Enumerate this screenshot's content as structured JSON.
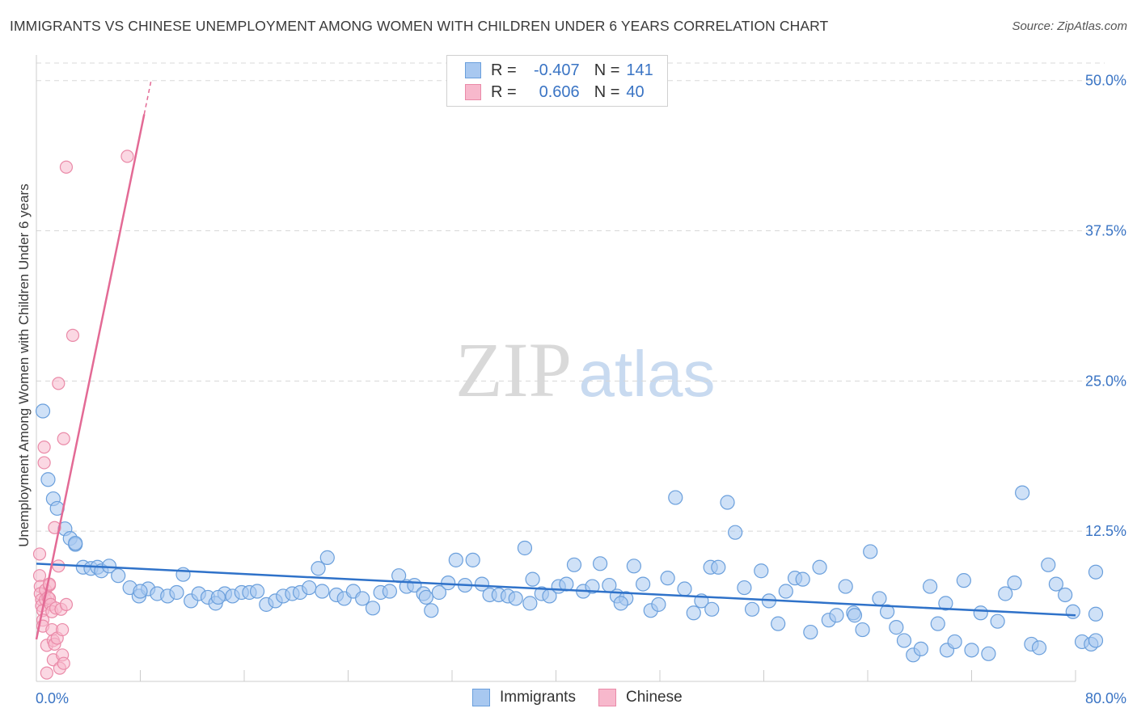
{
  "header": {
    "title": "IMMIGRANTS VS CHINESE UNEMPLOYMENT AMONG WOMEN WITH CHILDREN UNDER 6 YEARS CORRELATION CHART",
    "source": "Source: ZipAtlas.com"
  },
  "legend": {
    "r_label": "R =",
    "n_label": "N =",
    "immigrants": {
      "r": "-0.407",
      "n": "141"
    },
    "chinese": {
      "r": "0.606",
      "n": "40"
    }
  },
  "bottom_legend": {
    "immigrants": "Immigrants",
    "chinese": "Chinese"
  },
  "watermark": {
    "zip": "ZIP",
    "atlas": "atlas"
  },
  "colors": {
    "immigrants_fill": "#a8c8f0",
    "immigrants_stroke": "#6a9fdc",
    "immigrants_line": "#2f72c9",
    "chinese_fill": "#f7b8cc",
    "chinese_stroke": "#ea8aa8",
    "chinese_line": "#e36a95",
    "axis_text": "#3a74c4",
    "grid": "#d8d8d8"
  },
  "chart_data": {
    "type": "scatter",
    "title": "IMMIGRANTS VS CHINESE UNEMPLOYMENT AMONG WOMEN WITH CHILDREN UNDER 6 YEARS CORRELATION CHART",
    "xlabel": "",
    "ylabel": "Unemployment Among Women with Children Under 6 years",
    "xlim": [
      0,
      80
    ],
    "ylim": [
      0,
      52
    ],
    "x_tick_labels": [
      "0.0%",
      "80.0%"
    ],
    "y_ticks": [
      12.5,
      25.0,
      37.5,
      50.0
    ],
    "y_tick_labels": [
      "12.5%",
      "25.0%",
      "37.5%",
      "50.0%"
    ],
    "series": [
      {
        "name": "Immigrants",
        "trend": {
          "x": [
            0,
            80
          ],
          "y": [
            9.8,
            5.5
          ]
        },
        "points": [
          [
            0.5,
            22.5
          ],
          [
            0.9,
            16.8
          ],
          [
            1.3,
            15.2
          ],
          [
            1.6,
            14.4
          ],
          [
            2.2,
            12.7
          ],
          [
            2.6,
            11.9
          ],
          [
            3.0,
            11.4
          ],
          [
            3.6,
            9.5
          ],
          [
            4.2,
            9.4
          ],
          [
            4.7,
            9.5
          ],
          [
            5.0,
            9.2
          ],
          [
            5.6,
            9.6
          ],
          [
            6.3,
            8.8
          ],
          [
            7.2,
            7.8
          ],
          [
            7.9,
            7.1
          ],
          [
            8.6,
            7.7
          ],
          [
            9.3,
            7.3
          ],
          [
            10.1,
            7.1
          ],
          [
            10.8,
            7.4
          ],
          [
            11.3,
            8.9
          ],
          [
            11.9,
            6.7
          ],
          [
            12.5,
            7.3
          ],
          [
            13.2,
            7.0
          ],
          [
            13.8,
            6.5
          ],
          [
            14.5,
            7.3
          ],
          [
            15.1,
            7.1
          ],
          [
            15.8,
            7.4
          ],
          [
            16.4,
            7.4
          ],
          [
            17.0,
            7.5
          ],
          [
            17.7,
            6.4
          ],
          [
            18.4,
            6.7
          ],
          [
            19.0,
            7.1
          ],
          [
            19.7,
            7.3
          ],
          [
            20.3,
            7.4
          ],
          [
            21.0,
            7.8
          ],
          [
            21.7,
            9.4
          ],
          [
            22.4,
            10.3
          ],
          [
            23.1,
            7.2
          ],
          [
            23.7,
            6.9
          ],
          [
            24.4,
            7.5
          ],
          [
            25.1,
            6.9
          ],
          [
            25.9,
            6.1
          ],
          [
            26.5,
            7.4
          ],
          [
            27.2,
            7.5
          ],
          [
            27.9,
            8.8
          ],
          [
            28.5,
            7.9
          ],
          [
            29.1,
            8.0
          ],
          [
            29.8,
            7.3
          ],
          [
            30.4,
            5.9
          ],
          [
            31.0,
            7.4
          ],
          [
            31.7,
            8.2
          ],
          [
            32.3,
            10.1
          ],
          [
            33.0,
            8.0
          ],
          [
            33.6,
            10.1
          ],
          [
            34.3,
            8.1
          ],
          [
            34.9,
            7.2
          ],
          [
            35.6,
            7.2
          ],
          [
            36.3,
            7.1
          ],
          [
            36.9,
            6.9
          ],
          [
            37.6,
            11.1
          ],
          [
            38.2,
            8.5
          ],
          [
            38.9,
            7.3
          ],
          [
            39.5,
            7.1
          ],
          [
            40.2,
            7.9
          ],
          [
            40.8,
            8.1
          ],
          [
            41.4,
            9.7
          ],
          [
            42.1,
            7.5
          ],
          [
            42.8,
            7.9
          ],
          [
            43.4,
            9.8
          ],
          [
            44.1,
            8.0
          ],
          [
            44.7,
            7.1
          ],
          [
            45.4,
            6.9
          ],
          [
            46.0,
            9.6
          ],
          [
            46.7,
            8.1
          ],
          [
            47.3,
            5.9
          ],
          [
            47.9,
            6.4
          ],
          [
            48.6,
            8.6
          ],
          [
            49.2,
            15.3
          ],
          [
            49.9,
            7.7
          ],
          [
            50.6,
            5.7
          ],
          [
            51.2,
            6.7
          ],
          [
            51.9,
            9.5
          ],
          [
            52.5,
            9.5
          ],
          [
            53.2,
            14.9
          ],
          [
            53.8,
            12.4
          ],
          [
            54.5,
            7.8
          ],
          [
            55.1,
            6.0
          ],
          [
            55.8,
            9.2
          ],
          [
            56.4,
            6.7
          ],
          [
            57.1,
            4.8
          ],
          [
            57.7,
            7.5
          ],
          [
            58.4,
            8.6
          ],
          [
            59.0,
            8.5
          ],
          [
            59.6,
            4.1
          ],
          [
            60.3,
            9.5
          ],
          [
            61.0,
            5.1
          ],
          [
            61.6,
            5.5
          ],
          [
            62.3,
            7.9
          ],
          [
            62.9,
            5.7
          ],
          [
            63.6,
            4.3
          ],
          [
            64.2,
            10.8
          ],
          [
            64.9,
            6.9
          ],
          [
            65.5,
            5.8
          ],
          [
            66.2,
            4.5
          ],
          [
            66.8,
            3.4
          ],
          [
            67.5,
            2.2
          ],
          [
            68.1,
            2.7
          ],
          [
            68.8,
            7.9
          ],
          [
            69.4,
            4.8
          ],
          [
            70.1,
            2.6
          ],
          [
            70.7,
            3.3
          ],
          [
            71.4,
            8.4
          ],
          [
            72.0,
            2.6
          ],
          [
            72.7,
            5.7
          ],
          [
            73.3,
            2.3
          ],
          [
            74.0,
            5.0
          ],
          [
            74.6,
            7.3
          ],
          [
            75.3,
            8.2
          ],
          [
            75.9,
            15.7
          ],
          [
            76.6,
            3.1
          ],
          [
            77.2,
            2.8
          ],
          [
            77.9,
            9.7
          ],
          [
            78.5,
            8.1
          ],
          [
            79.2,
            7.2
          ],
          [
            79.8,
            5.8
          ],
          [
            80.5,
            3.3
          ],
          [
            81.2,
            3.1
          ],
          [
            81.8,
            3.4
          ],
          [
            82.5,
            5.6
          ],
          [
            83.1,
            9.1
          ],
          [
            70.0,
            6.5
          ],
          [
            63.0,
            5.5
          ],
          [
            52.0,
            6.0
          ],
          [
            45.0,
            6.5
          ],
          [
            38.0,
            6.5
          ],
          [
            30.0,
            7.0
          ],
          [
            22.0,
            7.5
          ],
          [
            14.0,
            7.0
          ],
          [
            8.0,
            7.5
          ],
          [
            3.0,
            11.5
          ]
        ]
      },
      {
        "name": "Chinese",
        "trend": {
          "x": [
            0,
            8.3
          ],
          "y": [
            3.5,
            47.2
          ]
        },
        "points": [
          [
            0.2,
            10.6
          ],
          [
            0.2,
            8.8
          ],
          [
            0.3,
            7.9
          ],
          [
            0.3,
            7.3
          ],
          [
            0.4,
            6.8
          ],
          [
            0.4,
            6.3
          ],
          [
            0.5,
            5.9
          ],
          [
            0.5,
            5.1
          ],
          [
            0.5,
            4.6
          ],
          [
            0.6,
            19.5
          ],
          [
            0.6,
            18.2
          ],
          [
            0.7,
            7.6
          ],
          [
            0.7,
            6.8
          ],
          [
            0.8,
            3.0
          ],
          [
            0.8,
            0.7
          ],
          [
            0.9,
            7.0
          ],
          [
            1.0,
            8.0
          ],
          [
            1.0,
            6.9
          ],
          [
            1.1,
            6.4
          ],
          [
            1.2,
            5.8
          ],
          [
            1.2,
            4.3
          ],
          [
            1.3,
            3.4
          ],
          [
            1.3,
            1.8
          ],
          [
            1.4,
            12.8
          ],
          [
            1.4,
            3.1
          ],
          [
            1.5,
            6.1
          ],
          [
            1.6,
            3.6
          ],
          [
            1.7,
            24.8
          ],
          [
            1.7,
            9.6
          ],
          [
            1.8,
            1.1
          ],
          [
            1.9,
            6.0
          ],
          [
            2.0,
            4.3
          ],
          [
            2.0,
            2.2
          ],
          [
            2.1,
            20.2
          ],
          [
            2.1,
            1.5
          ],
          [
            2.3,
            6.4
          ],
          [
            2.3,
            42.8
          ],
          [
            2.8,
            28.8
          ],
          [
            7.0,
            43.7
          ],
          [
            1.0,
            8.1
          ]
        ]
      }
    ]
  }
}
